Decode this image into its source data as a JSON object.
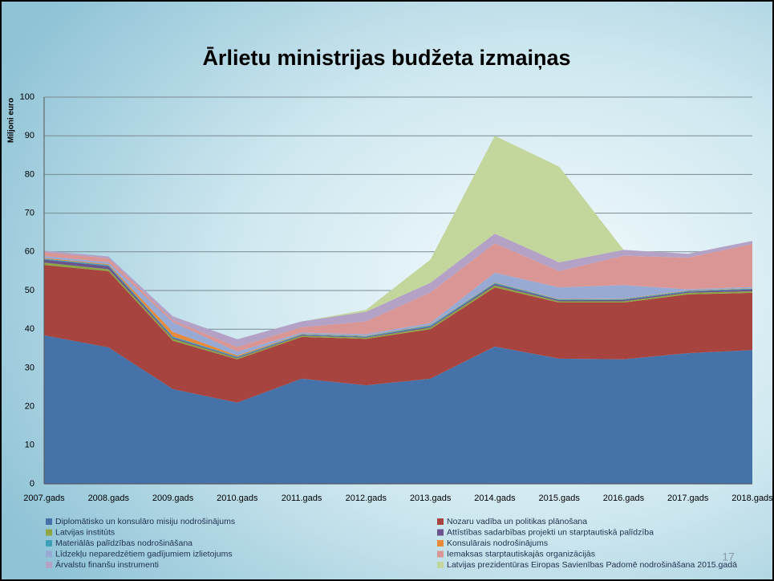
{
  "chart_data": {
    "type": "stacked_area",
    "title": "Ārlietu ministrijas budžeta izmaiņas",
    "y_label": "Miljoni euro",
    "page_number": "17",
    "categories": [
      "2007.gads",
      "2008.gads",
      "2009.gads",
      "2010.gads",
      "2011.gads",
      "2012.gads",
      "2013.gads",
      "2014.gads",
      "2015.gads",
      "2016.gads",
      "2017.gads",
      "2018.gads"
    ],
    "ylim": [
      0,
      100
    ],
    "yticks": [
      0,
      10,
      20,
      30,
      40,
      50,
      60,
      70,
      80,
      90,
      100
    ],
    "grid": true,
    "series": [
      {
        "name": "Diplomātisko un konsulāro misiju nodrošinājums",
        "color": "#4672aa",
        "values": [
          38.4,
          35.3,
          24.5,
          21,
          27.2,
          25.5,
          27.2,
          35.5,
          32.4,
          32.2,
          33.8,
          34.6
        ]
      },
      {
        "name": "Nozaru vadība un politikas plānošana",
        "color": "#a8443f",
        "values": [
          18.2,
          19.7,
          12.5,
          11.2,
          10.8,
          12,
          12.8,
          15.3,
          14.5,
          14.7,
          15.2,
          14.8
        ]
      },
      {
        "name": "Latvijas institūts",
        "color": "#8ea544",
        "values": [
          0.6,
          0.5,
          0.5,
          0.3,
          0.3,
          0.3,
          0.4,
          0.5,
          0.3,
          0.3,
          0.4,
          0.4
        ]
      },
      {
        "name": "Attīstības sadarbības projekti un starptautiskā palīdzība",
        "color": "#6b548e",
        "values": [
          0.8,
          0.8,
          0.3,
          0.2,
          0.2,
          0.2,
          0.3,
          0.4,
          0.3,
          0.4,
          0.3,
          0.5
        ]
      },
      {
        "name": "Materiālās palīdzības nodrošināšana",
        "color": "#3fa1b8",
        "values": [
          0.2,
          0.3,
          0.3,
          0.2,
          0.2,
          0.2,
          0.3,
          0.3,
          0.2,
          0.2,
          0.2,
          0.2
        ]
      },
      {
        "name": "Konsulārais nodrošinājums",
        "color": "#e88a3a",
        "values": [
          0.2,
          0.2,
          1.2,
          0.3,
          0.1,
          0.1,
          0.1,
          0.1,
          0.1,
          0.1,
          0.1,
          0.1
        ]
      },
      {
        "name": "Līdzekļu neparedzētiem gadījumiem izlietojums",
        "color": "#98aad4",
        "values": [
          0.5,
          0.5,
          2.5,
          1,
          0.3,
          0.4,
          0.5,
          2.5,
          3,
          3.5,
          0.3,
          0.3
        ]
      },
      {
        "name": "Iemaksas starptautiskajās organizācijās",
        "color": "#d99694",
        "values": [
          1.0,
          1.0,
          0.5,
          1.2,
          1.4,
          3.3,
          7.9,
          7.6,
          4.2,
          7.6,
          8.2,
          11.1
        ]
      },
      {
        "name": "Ārvalstu finanšu instrumenti",
        "color": "#b4a2c6",
        "values": [
          0.4,
          0.5,
          1.0,
          2.0,
          1.5,
          2.5,
          2.5,
          2.5,
          2.3,
          1.5,
          1.0,
          0.8
        ]
      },
      {
        "name": "Latvijas prezidentūras Eiropas Savienības Padomē nodrošināšana 2015.gadā",
        "color": "#c3d69b",
        "values": [
          0,
          0,
          0,
          0,
          0,
          0.5,
          6,
          25.3,
          24.7,
          0,
          0,
          0
        ]
      }
    ]
  }
}
